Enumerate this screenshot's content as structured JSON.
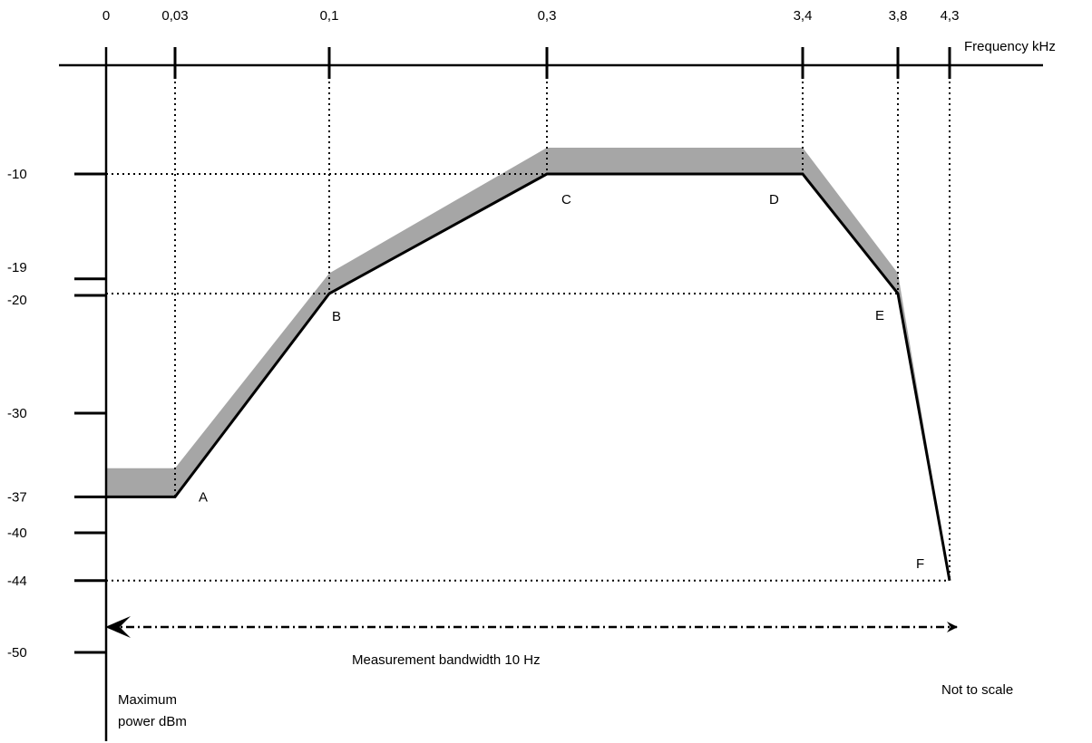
{
  "chart_data": {
    "type": "line",
    "x_axis": {
      "label": "Frequency kHz",
      "scale": "not to scale",
      "ticks": [
        "0",
        "0,03",
        "0,1",
        "0,3",
        "3,4",
        "3,8",
        "4,3"
      ]
    },
    "y_axis": {
      "label_line1": "Maximum",
      "label_line2": "power dBm",
      "ticks": [
        "-10",
        "-19",
        "-20",
        "-30",
        "-37",
        "-40",
        "-44",
        "-50"
      ],
      "ylim": [
        -52,
        0
      ]
    },
    "series": [
      {
        "role": "mask",
        "color": "#000000",
        "points": [
          {
            "x": 0,
            "y": -37,
            "label": ""
          },
          {
            "x": 0.03,
            "y": -37,
            "label": "A"
          },
          {
            "x": 0.1,
            "y": -20,
            "label": "B"
          },
          {
            "x": 0.3,
            "y": -10,
            "label": "C"
          },
          {
            "x": 3.4,
            "y": -10,
            "label": "D"
          },
          {
            "x": 3.8,
            "y": -20,
            "label": "E"
          },
          {
            "x": 4.3,
            "y": -44,
            "label": "F"
          }
        ]
      },
      {
        "role": "tolerance-band-upper-edge",
        "color": "#a6a6a6",
        "points": [
          {
            "x": 0,
            "y": -34.6
          },
          {
            "x": 0.03,
            "y": -34.6
          },
          {
            "x": 0.1,
            "y": -18.3
          },
          {
            "x": 0.3,
            "y": -7.8
          },
          {
            "x": 3.4,
            "y": -7.8
          },
          {
            "x": 3.8,
            "y": -18.3
          },
          {
            "x": 4.3,
            "y": -44
          }
        ]
      }
    ],
    "guide_lines": {
      "vertical_at_x": [
        "0,03",
        "0,1",
        "0,3",
        "3,4",
        "3,8",
        "4,3"
      ],
      "horizontal_at_y": [
        "-10",
        "-20",
        "-44"
      ]
    },
    "annotations": {
      "bandwidth": "Measurement bandwidth 10 Hz",
      "scale_note": "Not to scale"
    },
    "grid": false,
    "legend": "none"
  }
}
